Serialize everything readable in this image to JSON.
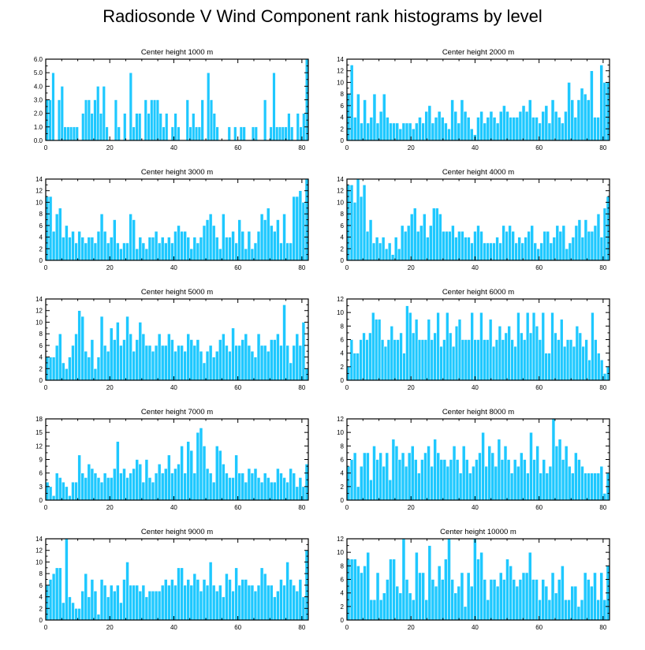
{
  "title": "Radiosonde V Wind Component rank histograms by level",
  "colors": {
    "bar": "#1ec8ff",
    "axis": "#000000"
  },
  "chart_data": [
    {
      "type": "bar",
      "title": "Center height 1000 m",
      "xlim": [
        0,
        82
      ],
      "xticks": [
        0,
        20,
        40,
        60,
        80
      ],
      "ylim": [
        0,
        6
      ],
      "yticks": [
        0,
        1,
        2,
        3,
        4,
        5,
        6
      ],
      "ytick_labels": [
        "0.0",
        "1.0",
        "2.0",
        "3.0",
        "4.0",
        "5.0",
        "6.0"
      ],
      "values": [
        3,
        3,
        5,
        0,
        3,
        4,
        1,
        1,
        1,
        1,
        1,
        0,
        2,
        3,
        3,
        2,
        3,
        4,
        2,
        4,
        1,
        0,
        0,
        3,
        1,
        0,
        2,
        0,
        5,
        1,
        2,
        2,
        0,
        3,
        2,
        3,
        3,
        3,
        2,
        1,
        2,
        0,
        1,
        2,
        1,
        0,
        0,
        3,
        1,
        2,
        1,
        1,
        3,
        0,
        5,
        3,
        2,
        1,
        0,
        0,
        0,
        1,
        0,
        1,
        0,
        1,
        1,
        0,
        0,
        1,
        1,
        0,
        0,
        3,
        0,
        1,
        5,
        1,
        1,
        1,
        1,
        2,
        1,
        0,
        2,
        1,
        2,
        6
      ]
    },
    {
      "type": "bar",
      "title": "Center height 2000 m",
      "xlim": [
        0,
        82
      ],
      "xticks": [
        0,
        20,
        40,
        60,
        80
      ],
      "ylim": [
        0,
        14
      ],
      "yticks": [
        0,
        2,
        4,
        6,
        8,
        10,
        12,
        14
      ],
      "ytick_labels": [
        "0",
        "2",
        "4",
        "6",
        "8",
        "10",
        "12",
        "14"
      ],
      "values": [
        8,
        13,
        4,
        8,
        3,
        7,
        3,
        4,
        8,
        3,
        5,
        8,
        4,
        3,
        3,
        3,
        2,
        3,
        3,
        3,
        2,
        3,
        4,
        3,
        5,
        6,
        3,
        4,
        5,
        4,
        3,
        2,
        7,
        5,
        3,
        7,
        5,
        4,
        2,
        1,
        4,
        5,
        3,
        4,
        5,
        4,
        3,
        5,
        6,
        5,
        4,
        4,
        4,
        5,
        6,
        5,
        7,
        4,
        4,
        3,
        5,
        6,
        3,
        7,
        5,
        4,
        3,
        5,
        10,
        7,
        4,
        7,
        9,
        8,
        7,
        12,
        4,
        4,
        13,
        10,
        10
      ]
    },
    {
      "type": "bar",
      "title": "Center height 3000 m",
      "xlim": [
        0,
        82
      ],
      "xticks": [
        0,
        20,
        40,
        60,
        80
      ],
      "ylim": [
        0,
        14
      ],
      "yticks": [
        0,
        2,
        4,
        6,
        8,
        10,
        12,
        14
      ],
      "ytick_labels": [
        "0",
        "2",
        "4",
        "6",
        "8",
        "10",
        "12",
        "14"
      ],
      "values": [
        11,
        11,
        5,
        8,
        9,
        4,
        6,
        4,
        5,
        3,
        5,
        4,
        3,
        4,
        4,
        3,
        5,
        8,
        5,
        3,
        4,
        7,
        3,
        2,
        3,
        3,
        8,
        7,
        2,
        4,
        3,
        2,
        4,
        4,
        5,
        3,
        4,
        3,
        4,
        3,
        5,
        6,
        5,
        5,
        4,
        2,
        4,
        3,
        4,
        6,
        7,
        8,
        6,
        4,
        2,
        8,
        4,
        4,
        5,
        3,
        7,
        5,
        2,
        5,
        2,
        3,
        5,
        8,
        7,
        9,
        6,
        5,
        7,
        3,
        8,
        3,
        3,
        11,
        11,
        12,
        10,
        14
      ]
    },
    {
      "type": "bar",
      "title": "Center height 4000 m",
      "xlim": [
        0,
        82
      ],
      "xticks": [
        0,
        20,
        40,
        60,
        80
      ],
      "ylim": [
        0,
        14
      ],
      "yticks": [
        0,
        2,
        4,
        6,
        8,
        10,
        12,
        14
      ],
      "ytick_labels": [
        "0",
        "2",
        "4",
        "6",
        "8",
        "10",
        "12",
        "14"
      ],
      "values": [
        13,
        13,
        10,
        14,
        11,
        13,
        5,
        7,
        3,
        4,
        3,
        4,
        2,
        3,
        1,
        4,
        2,
        6,
        5,
        6,
        8,
        9,
        5,
        6,
        8,
        4,
        6,
        9,
        9,
        8,
        5,
        5,
        5,
        6,
        4,
        5,
        5,
        4,
        4,
        3,
        5,
        6,
        5,
        3,
        3,
        3,
        3,
        4,
        3,
        6,
        5,
        6,
        5,
        3,
        4,
        3,
        4,
        5,
        6,
        3,
        2,
        3,
        5,
        5,
        3,
        4,
        6,
        5,
        6,
        2,
        3,
        4,
        6,
        7,
        4,
        7,
        5,
        5,
        6,
        8,
        4,
        9,
        11
      ]
    },
    {
      "type": "bar",
      "title": "Center height 5000 m",
      "xlim": [
        0,
        82
      ],
      "xticks": [
        0,
        20,
        40,
        60,
        80
      ],
      "ylim": [
        0,
        14
      ],
      "yticks": [
        0,
        2,
        4,
        6,
        8,
        10,
        12,
        14
      ],
      "ytick_labels": [
        "0",
        "2",
        "4",
        "6",
        "8",
        "10",
        "12",
        "14"
      ],
      "values": [
        4,
        4,
        4,
        6,
        8,
        3,
        2,
        4,
        6,
        8,
        12,
        11,
        5,
        4,
        7,
        2,
        4,
        11,
        6,
        5,
        9,
        7,
        10,
        6,
        7,
        11,
        8,
        5,
        7,
        10,
        8,
        6,
        6,
        5,
        6,
        8,
        6,
        6,
        8,
        7,
        5,
        6,
        6,
        5,
        8,
        7,
        6,
        7,
        5,
        3,
        5,
        6,
        4,
        5,
        7,
        8,
        6,
        5,
        9,
        6,
        6,
        7,
        8,
        6,
        5,
        4,
        8,
        6,
        6,
        5,
        7,
        7,
        8,
        6,
        13,
        6,
        3,
        6,
        8,
        6,
        10,
        2
      ]
    },
    {
      "type": "bar",
      "title": "Center height 6000 m",
      "xlim": [
        0,
        82
      ],
      "xticks": [
        0,
        20,
        40,
        60,
        80
      ],
      "ylim": [
        0,
        12
      ],
      "yticks": [
        0,
        2,
        4,
        6,
        8,
        10,
        12
      ],
      "ytick_labels": [
        "0",
        "2",
        "4",
        "6",
        "8",
        "10",
        "12"
      ],
      "values": [
        2,
        6,
        4,
        4,
        6,
        7,
        6,
        7,
        10,
        9,
        9,
        6,
        5,
        6,
        8,
        6,
        6,
        7,
        4,
        11,
        10,
        7,
        9,
        6,
        6,
        6,
        9,
        6,
        7,
        10,
        5,
        6,
        10,
        7,
        5,
        8,
        9,
        6,
        6,
        6,
        10,
        6,
        6,
        10,
        6,
        6,
        9,
        5,
        6,
        8,
        6,
        7,
        8,
        6,
        5,
        10,
        7,
        6,
        10,
        7,
        10,
        8,
        6,
        10,
        4,
        4,
        10,
        7,
        6,
        9,
        5,
        6,
        6,
        5,
        8,
        7,
        5,
        6,
        3,
        10,
        6,
        4,
        3,
        1,
        2
      ]
    },
    {
      "type": "bar",
      "title": "Center height 7000 m",
      "xlim": [
        0,
        82
      ],
      "xticks": [
        0,
        20,
        40,
        60,
        80
      ],
      "ylim": [
        0,
        18
      ],
      "yticks": [
        0,
        3,
        6,
        9,
        12,
        15,
        18
      ],
      "ytick_labels": [
        "0",
        "3",
        "6",
        "9",
        "12",
        "15",
        "18"
      ],
      "values": [
        4,
        3,
        1,
        6,
        5,
        4,
        3,
        1,
        4,
        4,
        10,
        6,
        5,
        8,
        7,
        6,
        5,
        4,
        6,
        5,
        5,
        7,
        13,
        6,
        7,
        5,
        6,
        7,
        9,
        8,
        4,
        9,
        5,
        4,
        6,
        8,
        6,
        7,
        10,
        6,
        7,
        8,
        12,
        6,
        13,
        11,
        6,
        15,
        16,
        12,
        7,
        6,
        4,
        12,
        11,
        8,
        6,
        5,
        5,
        10,
        6,
        6,
        4,
        7,
        6,
        7,
        5,
        4,
        6,
        5,
        4,
        4,
        7,
        6,
        5,
        4,
        7,
        6,
        3,
        5,
        3,
        8
      ]
    },
    {
      "type": "bar",
      "title": "Center height 8000 m",
      "xlim": [
        0,
        82
      ],
      "xticks": [
        0,
        20,
        40,
        60,
        80
      ],
      "ylim": [
        0,
        12
      ],
      "yticks": [
        0,
        2,
        4,
        6,
        8,
        10,
        12
      ],
      "ytick_labels": [
        "0",
        "2",
        "4",
        "6",
        "8",
        "10",
        "12"
      ],
      "values": [
        5,
        6,
        7,
        2,
        5,
        7,
        7,
        3,
        8,
        6,
        7,
        5,
        7,
        3,
        9,
        8,
        6,
        7,
        5,
        7,
        8,
        6,
        4,
        6,
        7,
        8,
        5,
        9,
        7,
        6,
        6,
        5,
        6,
        8,
        6,
        4,
        8,
        6,
        4,
        5,
        6,
        7,
        10,
        5,
        8,
        7,
        5,
        9,
        6,
        8,
        6,
        4,
        6,
        5,
        7,
        6,
        4,
        10,
        6,
        8,
        4,
        6,
        4,
        5,
        12,
        8,
        9,
        6,
        8,
        5,
        4,
        7,
        6,
        5,
        4,
        4,
        4,
        4,
        4,
        5,
        1,
        4
      ]
    },
    {
      "type": "bar",
      "title": "Center height 9000 m",
      "xlim": [
        0,
        82
      ],
      "xticks": [
        0,
        20,
        40,
        60,
        80
      ],
      "ylim": [
        0,
        14
      ],
      "yticks": [
        0,
        2,
        4,
        6,
        8,
        10,
        12,
        14
      ],
      "ytick_labels": [
        "0",
        "2",
        "4",
        "6",
        "8",
        "10",
        "12",
        "14"
      ],
      "values": [
        6,
        7,
        8,
        9,
        9,
        3,
        14,
        4,
        3,
        2,
        2,
        5,
        8,
        4,
        7,
        5,
        1,
        7,
        6,
        4,
        6,
        5,
        6,
        3,
        7,
        10,
        6,
        6,
        6,
        5,
        6,
        4,
        5,
        5,
        5,
        5,
        6,
        7,
        6,
        7,
        6,
        9,
        9,
        6,
        7,
        6,
        8,
        7,
        5,
        7,
        6,
        10,
        6,
        5,
        6,
        4,
        8,
        7,
        5,
        9,
        6,
        7,
        7,
        6,
        6,
        5,
        6,
        9,
        8,
        6,
        6,
        4,
        5,
        7,
        6,
        10,
        7,
        6,
        5,
        7,
        4,
        12
      ]
    },
    {
      "type": "bar",
      "title": "Center height 10000 m",
      "xlim": [
        0,
        82
      ],
      "xticks": [
        0,
        20,
        40,
        60,
        80
      ],
      "ylim": [
        0,
        12
      ],
      "yticks": [
        0,
        2,
        4,
        6,
        8,
        10,
        12
      ],
      "ytick_labels": [
        "0",
        "2",
        "4",
        "6",
        "8",
        "10",
        "12"
      ],
      "values": [
        9,
        9,
        9,
        8,
        7,
        8,
        10,
        3,
        3,
        7,
        3,
        4,
        6,
        9,
        9,
        5,
        4,
        12,
        6,
        4,
        3,
        10,
        7,
        7,
        3,
        11,
        6,
        5,
        8,
        6,
        9,
        12,
        6,
        4,
        5,
        7,
        2,
        7,
        5,
        12,
        9,
        10,
        6,
        3,
        6,
        6,
        5,
        7,
        6,
        9,
        8,
        6,
        5,
        6,
        7,
        7,
        10,
        6,
        6,
        3,
        6,
        5,
        3,
        7,
        4,
        6,
        8,
        3,
        3,
        5,
        5,
        2,
        3,
        7,
        6,
        5,
        7,
        3,
        7,
        3,
        8
      ]
    }
  ]
}
